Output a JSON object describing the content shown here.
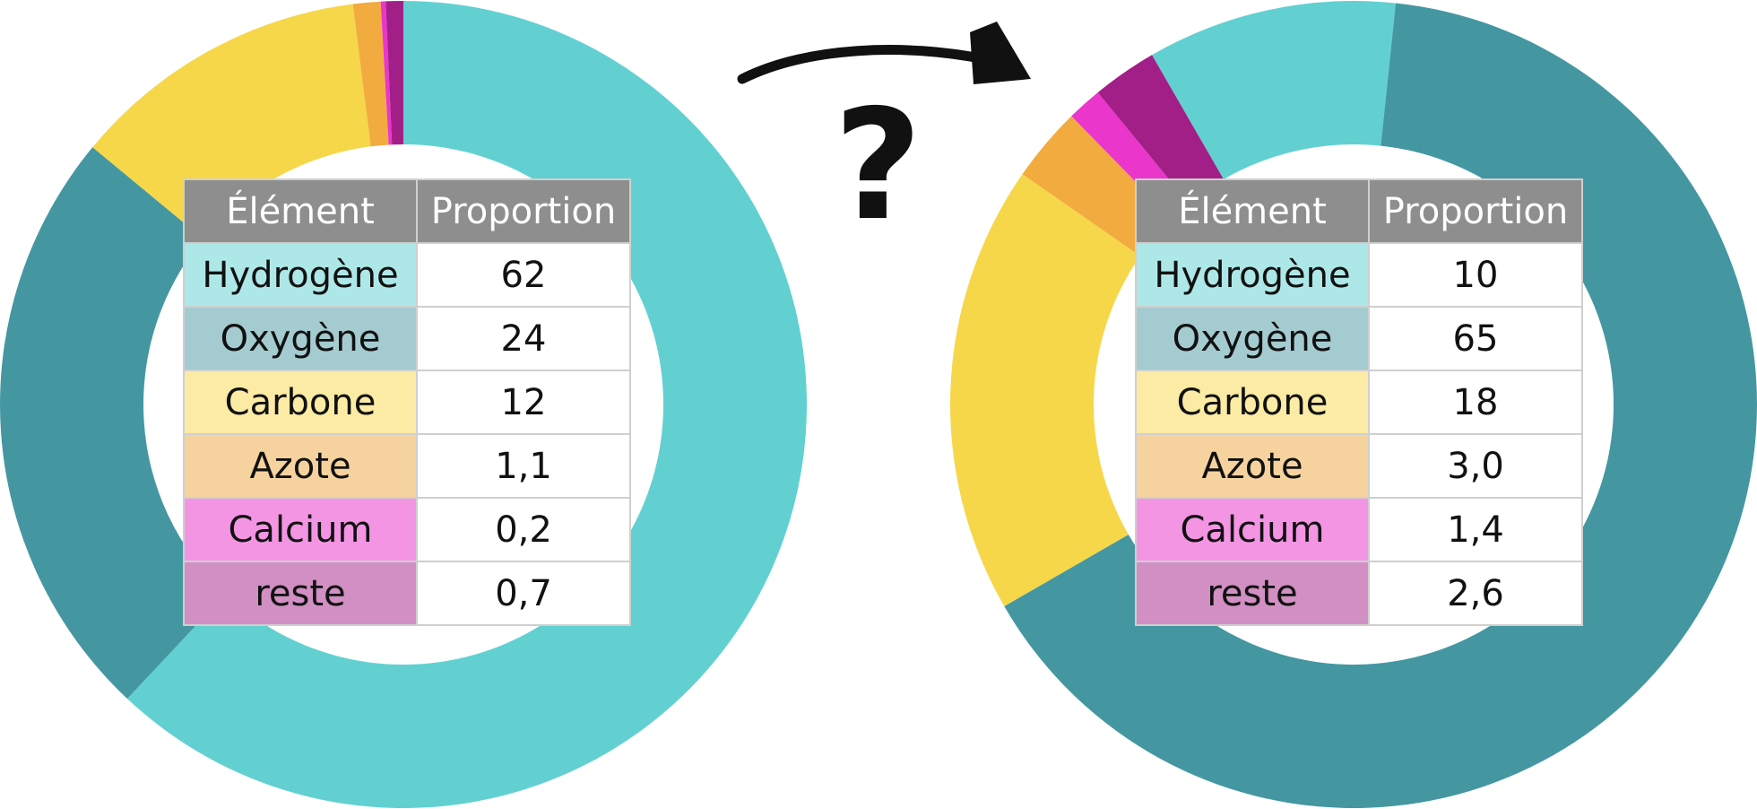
{
  "colors": {
    "Hydrogène": "#62d0d1",
    "Oxygène": "#4497a1",
    "Carbone": "#f6d74a",
    "Azote": "#f2ab3e",
    "Calcium": "#ea36cb",
    "reste": "#a31f88",
    "row_Hydrogène": "#aee7e7",
    "row_Oxygène": "#a4cbd0",
    "row_Carbone": "#fbeba4",
    "row_Azote": "#f6d39e",
    "row_Calcium": "#f495e4",
    "row_reste": "#d18fc3",
    "header": "#8e8e8e"
  },
  "question_mark": "?",
  "chart_data": [
    {
      "type": "pie",
      "variant": "donut",
      "header": [
        "Élément",
        "Proportion"
      ],
      "categories": [
        "Hydrogène",
        "Oxygène",
        "Carbone",
        "Azote",
        "Calcium",
        "reste"
      ],
      "values": [
        62,
        24,
        12,
        1.1,
        0.2,
        0.7
      ],
      "labels": [
        "62",
        "24",
        "12",
        "1,1",
        "0,2",
        "0,7"
      ]
    },
    {
      "type": "pie",
      "variant": "donut",
      "header": [
        "Élément",
        "Proportion"
      ],
      "categories": [
        "Hydrogène",
        "Oxygène",
        "Carbone",
        "Azote",
        "Calcium",
        "reste"
      ],
      "values": [
        10,
        65,
        18,
        3.0,
        1.4,
        2.6
      ],
      "labels": [
        "10",
        "65",
        "18",
        "3,0",
        "1,4",
        "2,6"
      ]
    }
  ]
}
